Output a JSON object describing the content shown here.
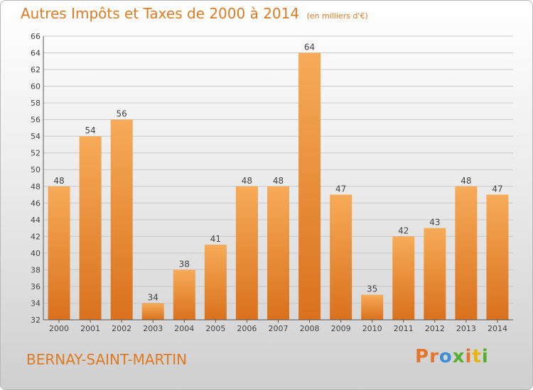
{
  "header": {
    "title": "Autres Impôts et Taxes de 2000 à 2014",
    "subtitle": "(en milliers d'€)"
  },
  "footer": {
    "commune": "BERNAY-SAINT-MARTIN",
    "logo_text": "Proxiti",
    "logo_colors": [
      "#e8742a",
      "#e8742a",
      "#3a8fd8",
      "#55b030",
      "#e8742a",
      "#e8b400",
      "#55b030"
    ]
  },
  "colors": {
    "bar_light": "#f7ab58",
    "bar_dark": "#d9711e",
    "title": "#e07a20",
    "grid": "#c8c8c8"
  },
  "chart_data": {
    "type": "bar",
    "title": "Autres Impôts et Taxes de 2000 à 2014",
    "subtitle": "(en milliers d'€)",
    "categories": [
      "2000",
      "2001",
      "2002",
      "2003",
      "2004",
      "2005",
      "2006",
      "2007",
      "2008",
      "2009",
      "2010",
      "2011",
      "2012",
      "2013",
      "2014"
    ],
    "values": [
      48,
      54,
      56,
      34,
      38,
      41,
      48,
      48,
      64,
      47,
      35,
      42,
      43,
      48,
      47
    ],
    "ylim": [
      32,
      66
    ],
    "yticks": [
      32,
      34,
      36,
      38,
      40,
      42,
      44,
      46,
      48,
      50,
      52,
      54,
      56,
      58,
      60,
      62,
      64,
      66
    ],
    "grid": true,
    "data_labels": true
  }
}
